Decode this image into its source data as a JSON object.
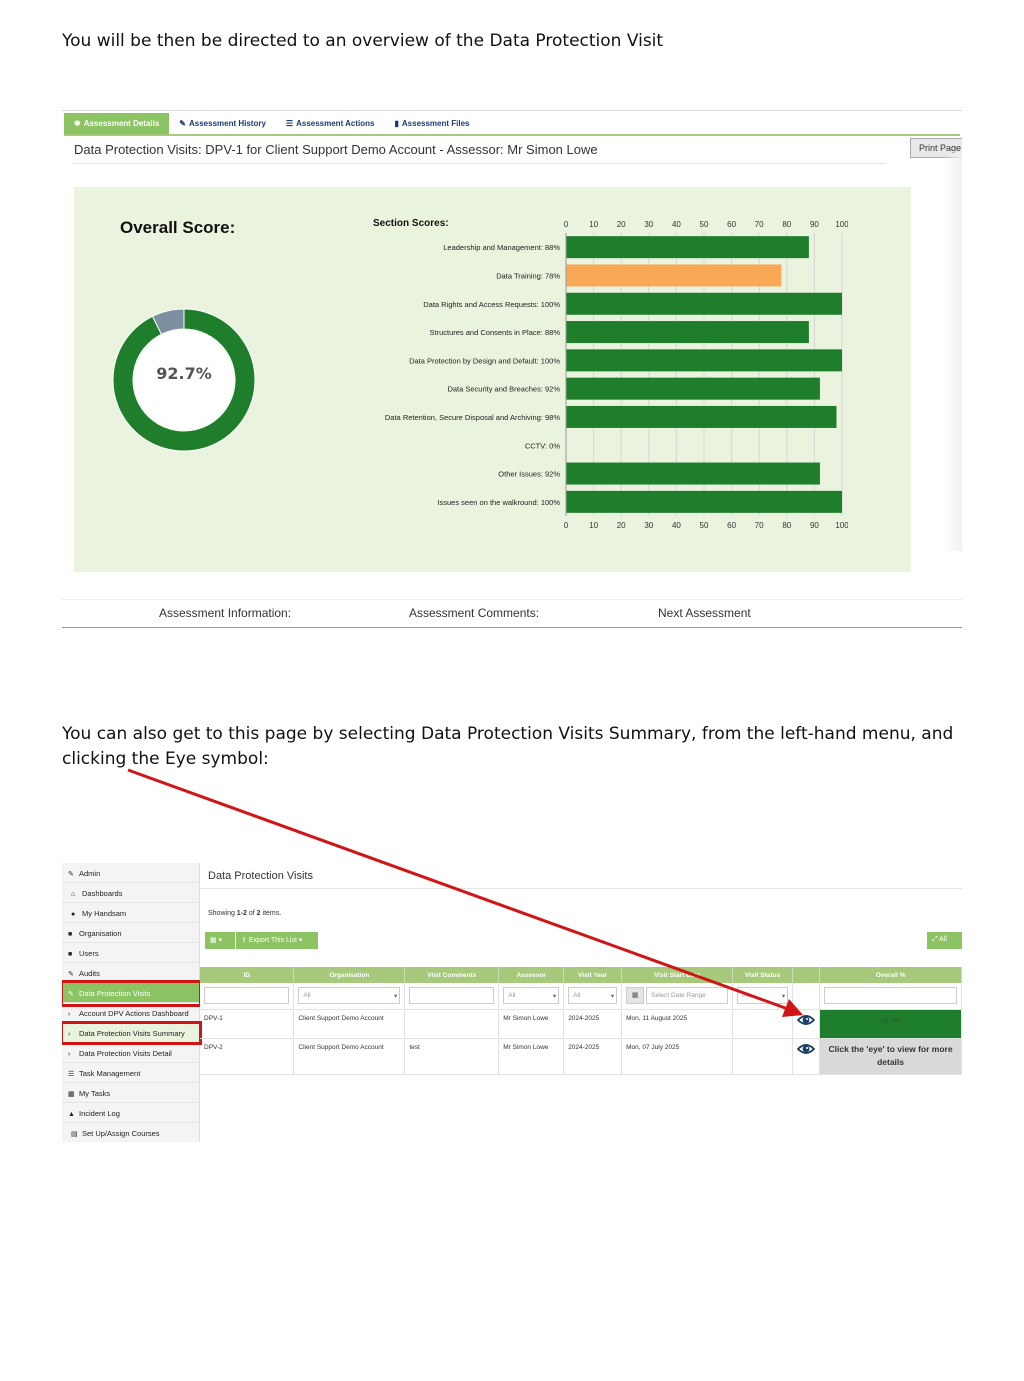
{
  "paragraphs": {
    "intro": "You will be then be directed to an overview of the Data Protection Visit",
    "alternate": "You can also get to this page by selecting Data Protection Visits Summary, from the left-hand menu, and clicking the Eye symbol:"
  },
  "assessment_page": {
    "tabs": [
      {
        "label": "Assessment Details",
        "icon": "gear-icon"
      },
      {
        "label": "Assessment History",
        "icon": "pencil-icon"
      },
      {
        "label": "Assessment Actions",
        "icon": "list-icon"
      },
      {
        "label": "Assessment Files",
        "icon": "file-icon"
      }
    ],
    "title": "Data Protection Visits: DPV-1 for Client Support Demo Account - Assessor: Mr Simon Lowe",
    "print_label": "Print Page",
    "overall_label": "Overall Score:",
    "overall_value": "92.7%",
    "overall_fraction": 0.927,
    "footer": {
      "info": "Assessment Information:",
      "comments": "Assessment Comments:",
      "next": "Next Assessment"
    },
    "colors": {
      "good": "#1e7e2b",
      "warn": "#f9a856",
      "remainder": "#7d8ea0",
      "panel": "#e9f3de",
      "tab_active": "#8cc363"
    }
  },
  "chart_data": [
    {
      "type": "pie",
      "title": "Overall Score:",
      "values": [
        92.7,
        7.3
      ],
      "center_label": "92.7%"
    },
    {
      "type": "bar",
      "orientation": "horizontal",
      "title": "Section Scores:",
      "categories": [
        "Leadership and Management: 88%",
        "Data Training: 78%",
        "Data Rights and Access Requests: 100%",
        "Structures and Consents in Place: 88%",
        "Data Protection by Design and Default: 100%",
        "Data Security and Breaches: 92%",
        "Data Retention, Secure Disposal and Archiving: 98%",
        "CCTV: 0%",
        "Other Issues: 92%",
        "Issues seen on the walkround: 100%"
      ],
      "values": [
        88,
        78,
        100,
        88,
        100,
        92,
        98,
        0,
        92,
        100
      ],
      "bar_colors": [
        "#1e7e2b",
        "#f9a856",
        "#1e7e2b",
        "#1e7e2b",
        "#1e7e2b",
        "#1e7e2b",
        "#1e7e2b",
        "#1e7e2b",
        "#1e7e2b",
        "#1e7e2b"
      ],
      "xlim": [
        0,
        100
      ],
      "ticks": [
        0,
        10,
        20,
        30,
        40,
        50,
        60,
        70,
        80,
        90,
        100
      ],
      "grid": true,
      "axis_position": "top and bottom"
    }
  ],
  "summary_page": {
    "sidebar": [
      {
        "label": "Admin",
        "icon": "wrench-icon"
      },
      {
        "label": "Dashboards",
        "icon": "home-icon"
      },
      {
        "label": "My Handsam",
        "icon": "user-icon"
      },
      {
        "label": "Organisation",
        "icon": "briefcase-icon"
      },
      {
        "label": "Users",
        "icon": "users-icon"
      },
      {
        "label": "Audits",
        "icon": "wrench-icon"
      },
      {
        "label": "Data Protection Visits",
        "icon": "pencil-icon"
      },
      {
        "label": "Account DPV Actions Dashboard",
        "icon": "chevron-right-icon"
      },
      {
        "label": "Data Protection Visits Summary",
        "icon": "chevron-right-icon"
      },
      {
        "label": "Data Protection Visits Detail",
        "icon": "chevron-right-icon"
      },
      {
        "label": "Task Management",
        "icon": "list-icon"
      },
      {
        "label": "My Tasks",
        "icon": "table-icon"
      },
      {
        "label": "Incident Log",
        "icon": "warning-icon"
      },
      {
        "label": "Set Up/Assign Courses",
        "icon": "course-icon"
      }
    ],
    "title": "Data Protection Visits",
    "showing_prefix": "Showing ",
    "showing_range": "1-2",
    "showing_mid": " of ",
    "showing_total": "2",
    "showing_suffix": " items.",
    "export_label": "Export This List",
    "all_label": "All",
    "columns": [
      "ID",
      "Organisation",
      "Visit Comments",
      "Assessor",
      "Visit Year",
      "Visit Start Date",
      "Visit Status",
      "",
      "Overall %"
    ],
    "filters": {
      "organisation": "All",
      "assessor": "All",
      "year": "All",
      "date_placeholder": "Select Date Range",
      "status": "All"
    },
    "rows": [
      {
        "id": "DPV-1",
        "org": "Client Support Demo Account",
        "comments": "",
        "assessor": "Mr Simon Lowe",
        "year": "2024-2025",
        "date": "Mon, 11 August 2025",
        "status": "",
        "overall": "92.7%"
      },
      {
        "id": "DPV-2",
        "org": "Client Support Demo Account",
        "comments": "test",
        "assessor": "Mr Simon Lowe",
        "year": "2024-2025",
        "date": "Mon, 07 July 2025",
        "status": "",
        "overall": "Click the 'eye' to view for more details"
      }
    ]
  }
}
